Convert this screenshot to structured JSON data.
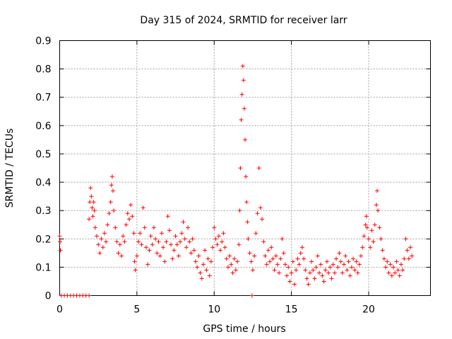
{
  "chart_data": {
    "type": "scatter",
    "title": "Day 315 of 2024, SRMTID for receiver larr",
    "xlabel": "GPS time / hours",
    "ylabel": "SRMTID / TECUs",
    "xlim": [
      0,
      24
    ],
    "ylim": [
      0,
      0.9
    ],
    "xticks": [
      0,
      5,
      10,
      15,
      20
    ],
    "yticks": [
      0,
      0.1,
      0.2,
      0.3,
      0.4,
      0.5,
      0.6,
      0.7,
      0.8,
      0.9
    ],
    "xtick_labels": [
      "0",
      "5",
      "10",
      "15",
      "20"
    ],
    "ytick_labels": [
      "0",
      "0.1",
      "0.2",
      "0.3",
      "0.4",
      "0.5",
      "0.6",
      "0.7",
      "0.8",
      "0.9"
    ],
    "grid": true,
    "marker": "+",
    "color": "#ff0000",
    "series": [
      {
        "name": "SRMTID",
        "points": [
          [
            0.0,
            0.21
          ],
          [
            0.02,
            0.19
          ],
          [
            0.05,
            0.16
          ],
          [
            0.1,
            0.0
          ],
          [
            0.3,
            0.0
          ],
          [
            0.5,
            0.0
          ],
          [
            0.7,
            0.0
          ],
          [
            0.9,
            0.0
          ],
          [
            1.1,
            0.0
          ],
          [
            1.3,
            0.0
          ],
          [
            1.5,
            0.0
          ],
          [
            1.7,
            0.0
          ],
          [
            1.9,
            0.0
          ],
          [
            1.9,
            0.27
          ],
          [
            1.95,
            0.33
          ],
          [
            2.0,
            0.38
          ],
          [
            2.05,
            0.35
          ],
          [
            2.1,
            0.31
          ],
          [
            2.15,
            0.28
          ],
          [
            2.2,
            0.33
          ],
          [
            2.25,
            0.3
          ],
          [
            2.3,
            0.24
          ],
          [
            2.4,
            0.21
          ],
          [
            2.5,
            0.18
          ],
          [
            2.6,
            0.15
          ],
          [
            2.7,
            0.2
          ],
          [
            2.8,
            0.17
          ],
          [
            2.9,
            0.22
          ],
          [
            3.0,
            0.19
          ],
          [
            3.1,
            0.25
          ],
          [
            3.2,
            0.29
          ],
          [
            3.3,
            0.33
          ],
          [
            3.35,
            0.39
          ],
          [
            3.4,
            0.42
          ],
          [
            3.45,
            0.37
          ],
          [
            3.5,
            0.3
          ],
          [
            3.6,
            0.24
          ],
          [
            3.7,
            0.19
          ],
          [
            3.8,
            0.15
          ],
          [
            3.9,
            0.18
          ],
          [
            4.0,
            0.14
          ],
          [
            4.1,
            0.21
          ],
          [
            4.2,
            0.19
          ],
          [
            4.3,
            0.25
          ],
          [
            4.4,
            0.29
          ],
          [
            4.5,
            0.27
          ],
          [
            4.6,
            0.32
          ],
          [
            4.7,
            0.28
          ],
          [
            4.8,
            0.22
          ],
          [
            4.85,
            0.12
          ],
          [
            4.9,
            0.09
          ],
          [
            5.0,
            0.14
          ],
          [
            5.1,
            0.19
          ],
          [
            5.2,
            0.22
          ],
          [
            5.3,
            0.18
          ],
          [
            5.4,
            0.31
          ],
          [
            5.5,
            0.24
          ],
          [
            5.6,
            0.17
          ],
          [
            5.7,
            0.11
          ],
          [
            5.8,
            0.16
          ],
          [
            5.9,
            0.21
          ],
          [
            6.0,
            0.18
          ],
          [
            6.1,
            0.24
          ],
          [
            6.2,
            0.2
          ],
          [
            6.3,
            0.15
          ],
          [
            6.4,
            0.19
          ],
          [
            6.5,
            0.14
          ],
          [
            6.6,
            0.22
          ],
          [
            6.7,
            0.17
          ],
          [
            6.8,
            0.12
          ],
          [
            6.9,
            0.19
          ],
          [
            7.0,
            0.28
          ],
          [
            7.1,
            0.23
          ],
          [
            7.2,
            0.18
          ],
          [
            7.3,
            0.13
          ],
          [
            7.4,
            0.16
          ],
          [
            7.5,
            0.21
          ],
          [
            7.6,
            0.18
          ],
          [
            7.7,
            0.14
          ],
          [
            7.8,
            0.19
          ],
          [
            7.9,
            0.22
          ],
          [
            8.0,
            0.26
          ],
          [
            8.1,
            0.2
          ],
          [
            8.2,
            0.17
          ],
          [
            8.3,
            0.24
          ],
          [
            8.4,
            0.19
          ],
          [
            8.5,
            0.15
          ],
          [
            8.6,
            0.2
          ],
          [
            8.7,
            0.16
          ],
          [
            8.8,
            0.12
          ],
          [
            8.9,
            0.1
          ],
          [
            9.0,
            0.14
          ],
          [
            9.1,
            0.08
          ],
          [
            9.2,
            0.06
          ],
          [
            9.3,
            0.11
          ],
          [
            9.4,
            0.16
          ],
          [
            9.5,
            0.09
          ],
          [
            9.6,
            0.13
          ],
          [
            9.7,
            0.07
          ],
          [
            9.8,
            0.12
          ],
          [
            9.9,
            0.17
          ],
          [
            10.0,
            0.24
          ],
          [
            10.1,
            0.2
          ],
          [
            10.2,
            0.18
          ],
          [
            10.3,
            0.21
          ],
          [
            10.4,
            0.16
          ],
          [
            10.5,
            0.19
          ],
          [
            10.6,
            0.22
          ],
          [
            10.7,
            0.17
          ],
          [
            10.8,
            0.13
          ],
          [
            10.9,
            0.1
          ],
          [
            11.0,
            0.14
          ],
          [
            11.1,
            0.11
          ],
          [
            11.2,
            0.08
          ],
          [
            11.3,
            0.13
          ],
          [
            11.4,
            0.09
          ],
          [
            11.5,
            0.12
          ],
          [
            11.6,
            0.18
          ],
          [
            11.65,
            0.3
          ],
          [
            11.7,
            0.45
          ],
          [
            11.75,
            0.62
          ],
          [
            11.8,
            0.71
          ],
          [
            11.85,
            0.81
          ],
          [
            11.9,
            0.76
          ],
          [
            11.95,
            0.66
          ],
          [
            12.0,
            0.55
          ],
          [
            12.05,
            0.42
          ],
          [
            12.1,
            0.33
          ],
          [
            12.15,
            0.26
          ],
          [
            12.2,
            0.2
          ],
          [
            12.3,
            0.15
          ],
          [
            12.4,
            0.12
          ],
          [
            12.45,
            0.0
          ],
          [
            12.5,
            0.09
          ],
          [
            12.6,
            0.14
          ],
          [
            12.7,
            0.22
          ],
          [
            12.8,
            0.29
          ],
          [
            12.9,
            0.45
          ],
          [
            13.0,
            0.31
          ],
          [
            13.1,
            0.27
          ],
          [
            13.2,
            0.19
          ],
          [
            13.3,
            0.14
          ],
          [
            13.4,
            0.11
          ],
          [
            13.5,
            0.16
          ],
          [
            13.6,
            0.12
          ],
          [
            13.7,
            0.17
          ],
          [
            13.8,
            0.13
          ],
          [
            13.9,
            0.09
          ],
          [
            14.0,
            0.14
          ],
          [
            14.1,
            0.11
          ],
          [
            14.2,
            0.08
          ],
          [
            14.3,
            0.13
          ],
          [
            14.4,
            0.2
          ],
          [
            14.5,
            0.15
          ],
          [
            14.6,
            0.11
          ],
          [
            14.7,
            0.07
          ],
          [
            14.8,
            0.1
          ],
          [
            14.9,
            0.05
          ],
          [
            15.0,
            0.08
          ],
          [
            15.1,
            0.12
          ],
          [
            15.2,
            0.04
          ],
          [
            15.3,
            0.09
          ],
          [
            15.4,
            0.13
          ],
          [
            15.5,
            0.11
          ],
          [
            15.6,
            0.15
          ],
          [
            15.7,
            0.17
          ],
          [
            15.8,
            0.13
          ],
          [
            15.9,
            0.09
          ],
          [
            16.0,
            0.06
          ],
          [
            16.1,
            0.04
          ],
          [
            16.2,
            0.08
          ],
          [
            16.3,
            0.12
          ],
          [
            16.4,
            0.09
          ],
          [
            16.5,
            0.06
          ],
          [
            16.6,
            0.1
          ],
          [
            16.7,
            0.14
          ],
          [
            16.8,
            0.08
          ],
          [
            16.9,
            0.11
          ],
          [
            17.0,
            0.07
          ],
          [
            17.1,
            0.05
          ],
          [
            17.2,
            0.09
          ],
          [
            17.3,
            0.12
          ],
          [
            17.4,
            0.08
          ],
          [
            17.5,
            0.1
          ],
          [
            17.6,
            0.06
          ],
          [
            17.7,
            0.11
          ],
          [
            17.8,
            0.08
          ],
          [
            17.9,
            0.13
          ],
          [
            18.0,
            0.1
          ],
          [
            18.1,
            0.15
          ],
          [
            18.2,
            0.12
          ],
          [
            18.3,
            0.08
          ],
          [
            18.4,
            0.11
          ],
          [
            18.5,
            0.14
          ],
          [
            18.6,
            0.09
          ],
          [
            18.7,
            0.12
          ],
          [
            18.8,
            0.07
          ],
          [
            18.9,
            0.1
          ],
          [
            19.0,
            0.13
          ],
          [
            19.1,
            0.09
          ],
          [
            19.2,
            0.12
          ],
          [
            19.3,
            0.08
          ],
          [
            19.4,
            0.11
          ],
          [
            19.5,
            0.14
          ],
          [
            19.6,
            0.17
          ],
          [
            19.7,
            0.21
          ],
          [
            19.8,
            0.25
          ],
          [
            19.85,
            0.28
          ],
          [
            19.9,
            0.24
          ],
          [
            20.0,
            0.2
          ],
          [
            20.1,
            0.17
          ],
          [
            20.2,
            0.23
          ],
          [
            20.3,
            0.19
          ],
          [
            20.4,
            0.25
          ],
          [
            20.5,
            0.32
          ],
          [
            20.55,
            0.37
          ],
          [
            20.6,
            0.3
          ],
          [
            20.7,
            0.24
          ],
          [
            20.8,
            0.2
          ],
          [
            20.9,
            0.16
          ],
          [
            21.0,
            0.13
          ],
          [
            21.1,
            0.1
          ],
          [
            21.2,
            0.12
          ],
          [
            21.3,
            0.08
          ],
          [
            21.4,
            0.11
          ],
          [
            21.5,
            0.07
          ],
          [
            21.6,
            0.1
          ],
          [
            21.7,
            0.08
          ],
          [
            21.8,
            0.12
          ],
          [
            21.9,
            0.09
          ],
          [
            22.0,
            0.07
          ],
          [
            22.1,
            0.11
          ],
          [
            22.2,
            0.09
          ],
          [
            22.3,
            0.13
          ],
          [
            22.4,
            0.2
          ],
          [
            22.5,
            0.16
          ],
          [
            22.6,
            0.13
          ],
          [
            22.7,
            0.17
          ],
          [
            22.8,
            0.14
          ]
        ]
      }
    ]
  }
}
